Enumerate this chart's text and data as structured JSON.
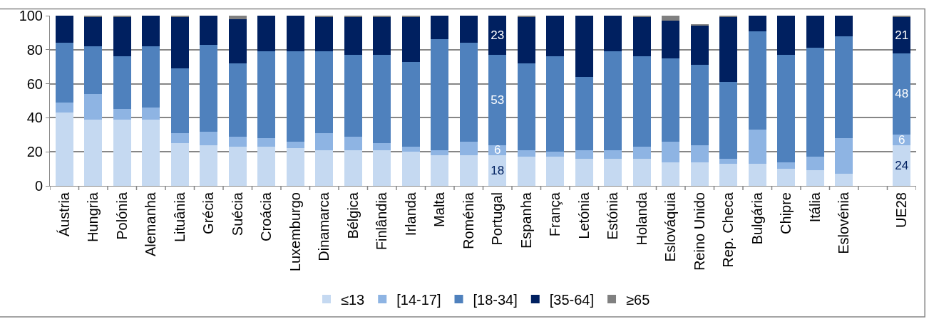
{
  "chart_data": {
    "type": "bar",
    "stacked": true,
    "categories": [
      "Áustria",
      "Hungria",
      "Polónia",
      "Alemanha",
      "Lituânia",
      "Grécia",
      "Suécia",
      "Croácia",
      "Luxemburgo",
      "Dinamarca",
      "Bélgica",
      "Finlândia",
      "Irlanda",
      "Malta",
      "Roménia",
      "Portugal",
      "Espanha",
      "França",
      "Letónia",
      "Estónia",
      "Holanda",
      "Eslováquia",
      "Reino Unido",
      "Rep. Checa",
      "Bulgária",
      "Chipre",
      "Itália",
      "Eslovénia",
      null,
      "UE28"
    ],
    "series": [
      {
        "name": "≤13",
        "color": "#c5d9f1",
        "values": [
          43,
          39,
          39,
          39,
          25,
          24,
          23,
          23,
          22,
          21,
          21,
          21,
          20,
          18,
          18,
          18,
          17,
          17,
          16,
          16,
          16,
          14,
          14,
          13,
          13,
          10,
          9,
          7,
          null,
          24
        ],
        "value_labels": [
          null,
          null,
          null,
          null,
          null,
          null,
          null,
          null,
          null,
          null,
          null,
          null,
          null,
          null,
          null,
          "18",
          null,
          null,
          null,
          null,
          null,
          null,
          null,
          null,
          null,
          null,
          null,
          null,
          null,
          "24"
        ]
      },
      {
        "name": "[14-17]",
        "color": "#8eb4e3",
        "values": [
          6,
          15,
          6,
          7,
          6,
          8,
          6,
          5,
          4,
          10,
          8,
          4,
          3,
          3,
          8,
          6,
          4,
          3,
          5,
          5,
          7,
          12,
          10,
          3,
          20,
          4,
          8,
          21,
          null,
          6
        ],
        "value_labels": [
          null,
          null,
          null,
          null,
          null,
          null,
          null,
          null,
          null,
          null,
          null,
          null,
          null,
          null,
          null,
          "6",
          null,
          null,
          null,
          null,
          null,
          null,
          null,
          null,
          null,
          null,
          null,
          null,
          null,
          "6"
        ]
      },
      {
        "name": "[18-34]",
        "color": "#4f81bd",
        "values": [
          35,
          28,
          31,
          36,
          38,
          51,
          43,
          51,
          53,
          48,
          48,
          52,
          50,
          65,
          58,
          53,
          51,
          56,
          43,
          58,
          53,
          49,
          47,
          45,
          58,
          63,
          64,
          60,
          null,
          48
        ],
        "value_labels": [
          null,
          null,
          null,
          null,
          null,
          null,
          null,
          null,
          null,
          null,
          null,
          null,
          null,
          null,
          null,
          "53",
          null,
          null,
          null,
          null,
          null,
          null,
          null,
          null,
          null,
          null,
          null,
          null,
          null,
          "48"
        ]
      },
      {
        "name": "[35-64]",
        "color": "#002060",
        "values": [
          16,
          17,
          23,
          18,
          30,
          17,
          26,
          21,
          21,
          20,
          22,
          22,
          26,
          14,
          16,
          23,
          27,
          24,
          36,
          21,
          23,
          22,
          23,
          38,
          9,
          23,
          19,
          12,
          null,
          21
        ],
        "value_labels": [
          null,
          null,
          null,
          null,
          null,
          null,
          null,
          null,
          null,
          null,
          null,
          null,
          null,
          null,
          null,
          "23",
          null,
          null,
          null,
          null,
          null,
          null,
          null,
          null,
          null,
          null,
          null,
          null,
          null,
          "21"
        ]
      },
      {
        "name": "≥65",
        "color": "#808080",
        "values": [
          0,
          1,
          1,
          0,
          1,
          0,
          2,
          0,
          0,
          1,
          1,
          1,
          1,
          0,
          0,
          0,
          1,
          0,
          0,
          0,
          1,
          3,
          1,
          1,
          0,
          0,
          0,
          0,
          null,
          1
        ]
      }
    ],
    "ylim": [
      0,
      100
    ],
    "yticks": [
      0,
      20,
      40,
      60,
      80,
      100
    ],
    "grid": "y",
    "legend": "bottom"
  }
}
